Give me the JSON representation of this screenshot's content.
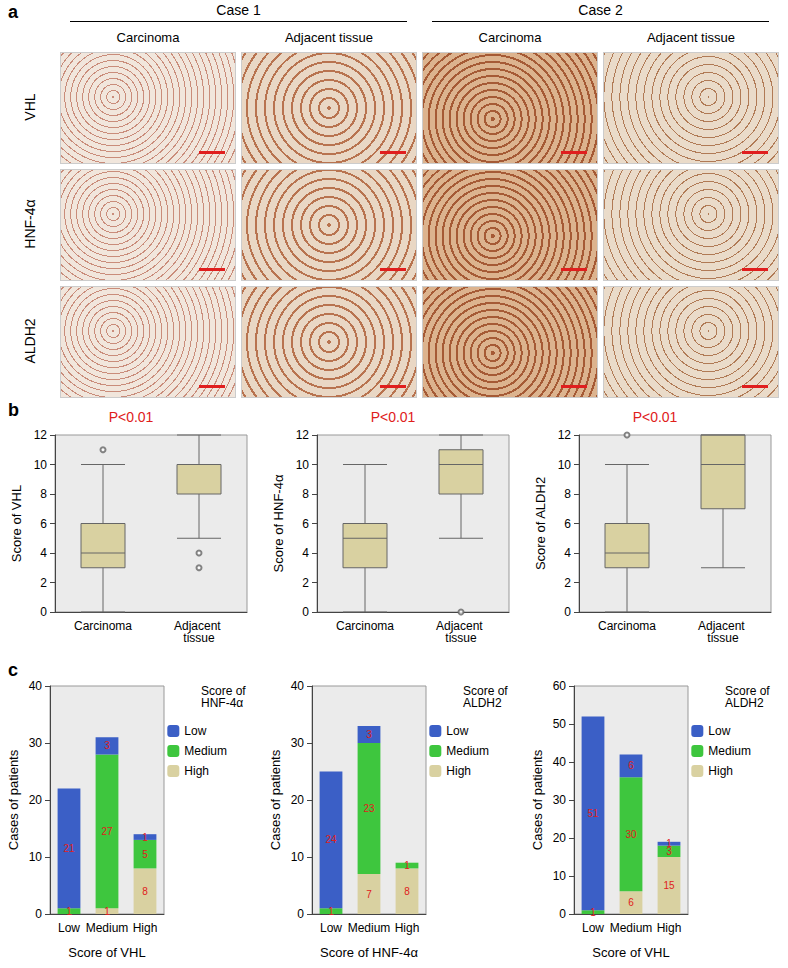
{
  "panel_a": {
    "label": "a",
    "groups": [
      "Case 1",
      "Case 2"
    ],
    "columns": [
      "Carcinoma",
      "Adjacent tissue",
      "Carcinoma",
      "Adjacent tissue"
    ],
    "rows": [
      "VHL",
      "HNF-4α",
      "ALDH2"
    ]
  },
  "panel_labels": [
    "b",
    "c"
  ],
  "chart_data": [
    {
      "type": "boxplot",
      "title": "P<0.01",
      "categories": [
        "Carcinoma",
        "Adjacent tissue"
      ],
      "y_label": "Score of VHL",
      "boxes": [
        {
          "min": 0,
          "q1": 3,
          "median": 4,
          "q3": 6,
          "max": 10,
          "outliers": [
            11
          ]
        },
        {
          "min": 5,
          "q1": 8,
          "median": 10,
          "q3": 10,
          "max": 12,
          "outliers": [
            4,
            3
          ]
        }
      ],
      "color": "#d9d1a1",
      "ylim": [
        0,
        12
      ],
      "yticks": [
        0,
        2,
        4,
        6,
        8,
        10,
        12
      ],
      "grid": false
    },
    {
      "type": "boxplot",
      "title": "P<0.01",
      "categories": [
        "Carcinoma",
        "Adjacent tissue"
      ],
      "y_label": "Score of HNF-4α",
      "boxes": [
        {
          "min": 0,
          "q1": 3,
          "median": 5,
          "q3": 6,
          "max": 10,
          "outliers": []
        },
        {
          "min": 5,
          "q1": 8,
          "median": 10,
          "q3": 11,
          "max": 12,
          "outliers": [
            0
          ]
        }
      ],
      "color": "#d9d1a1",
      "ylim": [
        0,
        12
      ],
      "yticks": [
        0,
        2,
        4,
        6,
        8,
        10,
        12
      ],
      "grid": false
    },
    {
      "type": "boxplot",
      "title": "P<0.01",
      "categories": [
        "Carcinoma",
        "Adjacent tissue"
      ],
      "y_label": "Score of ALDH2",
      "boxes": [
        {
          "min": 0,
          "q1": 3,
          "median": 4,
          "q3": 6,
          "max": 10,
          "outliers": [
            12
          ]
        },
        {
          "min": 3,
          "q1": 7,
          "median": 10,
          "q3": 12,
          "max": 12,
          "outliers": []
        }
      ],
      "color": "#d9d1a1",
      "ylim": [
        0,
        12
      ],
      "yticks": [
        0,
        2,
        4,
        6,
        8,
        10,
        12
      ],
      "grid": false
    },
    {
      "type": "bar",
      "stacked": true,
      "data_labels": true,
      "legend": "right",
      "grid": false,
      "categories": [
        "Low",
        "Medium",
        "High"
      ],
      "x_label": "Score of VHL",
      "y_label": "Cases of patients",
      "legend_title": "Score of HNF-4α",
      "series": [
        {
          "name": "Low",
          "color": "#3b5fc6",
          "values": [
            21,
            3,
            1
          ]
        },
        {
          "name": "Medium",
          "color": "#3ec63e",
          "values": [
            1,
            27,
            5
          ]
        },
        {
          "name": "High",
          "color": "#d9d1a1",
          "values": [
            0,
            1,
            8
          ]
        }
      ],
      "ylim": [
        0,
        40
      ],
      "yticks": [
        0,
        10,
        20,
        30,
        40
      ]
    },
    {
      "type": "bar",
      "stacked": true,
      "data_labels": true,
      "legend": "right",
      "grid": false,
      "categories": [
        "Low",
        "Medium",
        "High"
      ],
      "x_label": "Score of HNF-4α",
      "y_label": "Cases of patients",
      "legend_title": "Score of ALDH2",
      "series": [
        {
          "name": "Low",
          "color": "#3b5fc6",
          "values": [
            24,
            3,
            0
          ]
        },
        {
          "name": "Medium",
          "color": "#3ec63e",
          "values": [
            1,
            23,
            1
          ]
        },
        {
          "name": "High",
          "color": "#d9d1a1",
          "values": [
            0,
            7,
            8
          ]
        }
      ],
      "ylim": [
        0,
        40
      ],
      "yticks": [
        0,
        10,
        20,
        30,
        40
      ]
    },
    {
      "type": "bar",
      "stacked": true,
      "data_labels": true,
      "legend": "right",
      "grid": false,
      "categories": [
        "Low",
        "Medium",
        "High"
      ],
      "x_label": "Score of VHL",
      "y_label": "Cases of patients",
      "legend_title": "Score of ALDH2",
      "series": [
        {
          "name": "Low",
          "color": "#3b5fc6",
          "values": [
            51,
            6,
            1
          ]
        },
        {
          "name": "Medium",
          "color": "#3ec63e",
          "values": [
            1,
            30,
            3
          ]
        },
        {
          "name": "High",
          "color": "#d9d1a1",
          "values": [
            0,
            6,
            15
          ]
        }
      ],
      "ylim": [
        0,
        60
      ],
      "yticks": [
        0,
        10,
        20,
        30,
        40,
        50,
        60
      ]
    }
  ]
}
